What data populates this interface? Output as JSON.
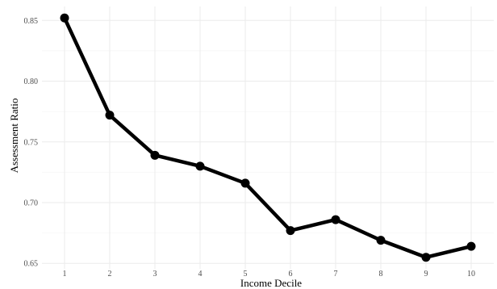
{
  "chart_data": {
    "type": "line",
    "x": [
      1,
      2,
      3,
      4,
      5,
      6,
      7,
      8,
      9,
      10
    ],
    "series": [
      {
        "values": [
          0.852,
          0.772,
          0.739,
          0.73,
          0.716,
          0.677,
          0.686,
          0.669,
          0.655,
          0.664
        ]
      }
    ],
    "xlabel": "Income Decile",
    "ylabel": "Assessment Ratio",
    "xlim": [
      0.5,
      10.5
    ],
    "ylim": [
      0.6455,
      0.8615
    ],
    "x_ticks": [
      "1",
      "2",
      "3",
      "4",
      "5",
      "6",
      "7",
      "8",
      "9",
      "10"
    ],
    "y_ticks": [
      "0.65",
      "0.70",
      "0.75",
      "0.80",
      "0.85"
    ],
    "grid": true,
    "line_color": "#000000",
    "background": "#ffffff"
  }
}
